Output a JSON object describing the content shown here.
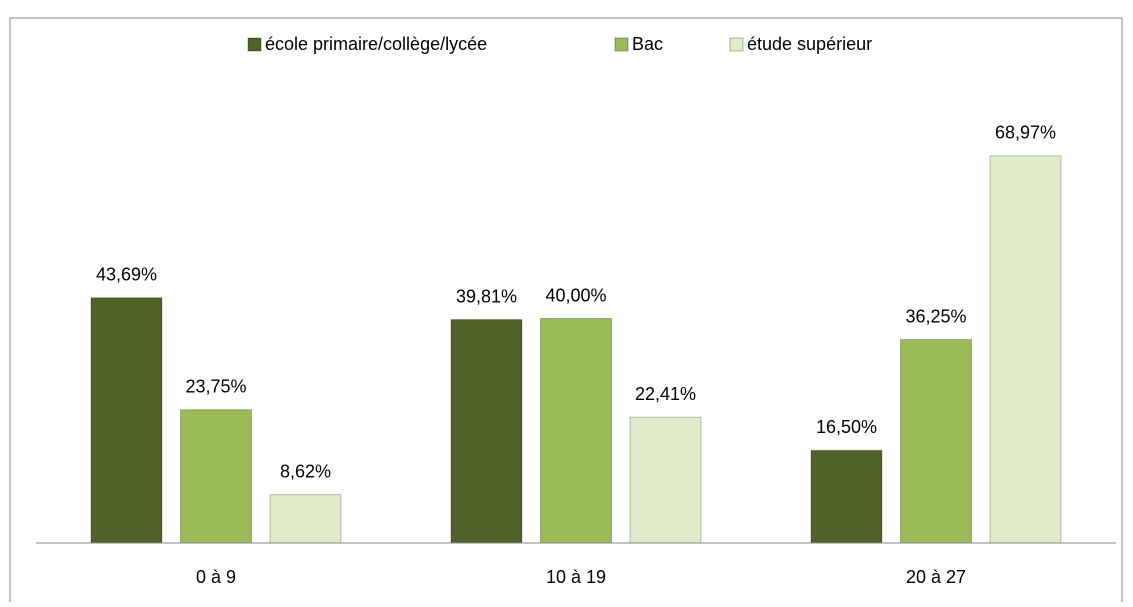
{
  "chart_data": {
    "type": "bar",
    "categories": [
      "0 à 9",
      "10 à 19",
      "20 à 27"
    ],
    "series": [
      {
        "name": "école primaire/collège/lycée",
        "color": "#4f6228",
        "values": [
          43.69,
          39.81,
          16.5
        ],
        "value_labels": [
          "43,69%",
          "39,81%",
          "16,50%"
        ]
      },
      {
        "name": "Bac",
        "color": "#9bbb59",
        "values": [
          23.75,
          40,
          36.25
        ],
        "value_labels": [
          "23,75%",
          "40,00%",
          "36,25%"
        ]
      },
      {
        "name": "étude supérieur",
        "color": "#e0ebc9",
        "values": [
          8.62,
          22.41,
          68.97
        ],
        "value_labels": [
          "8,62%",
          "22,41%",
          "68,97%"
        ]
      }
    ],
    "ylim": [
      0,
      80
    ],
    "legend": "top"
  }
}
